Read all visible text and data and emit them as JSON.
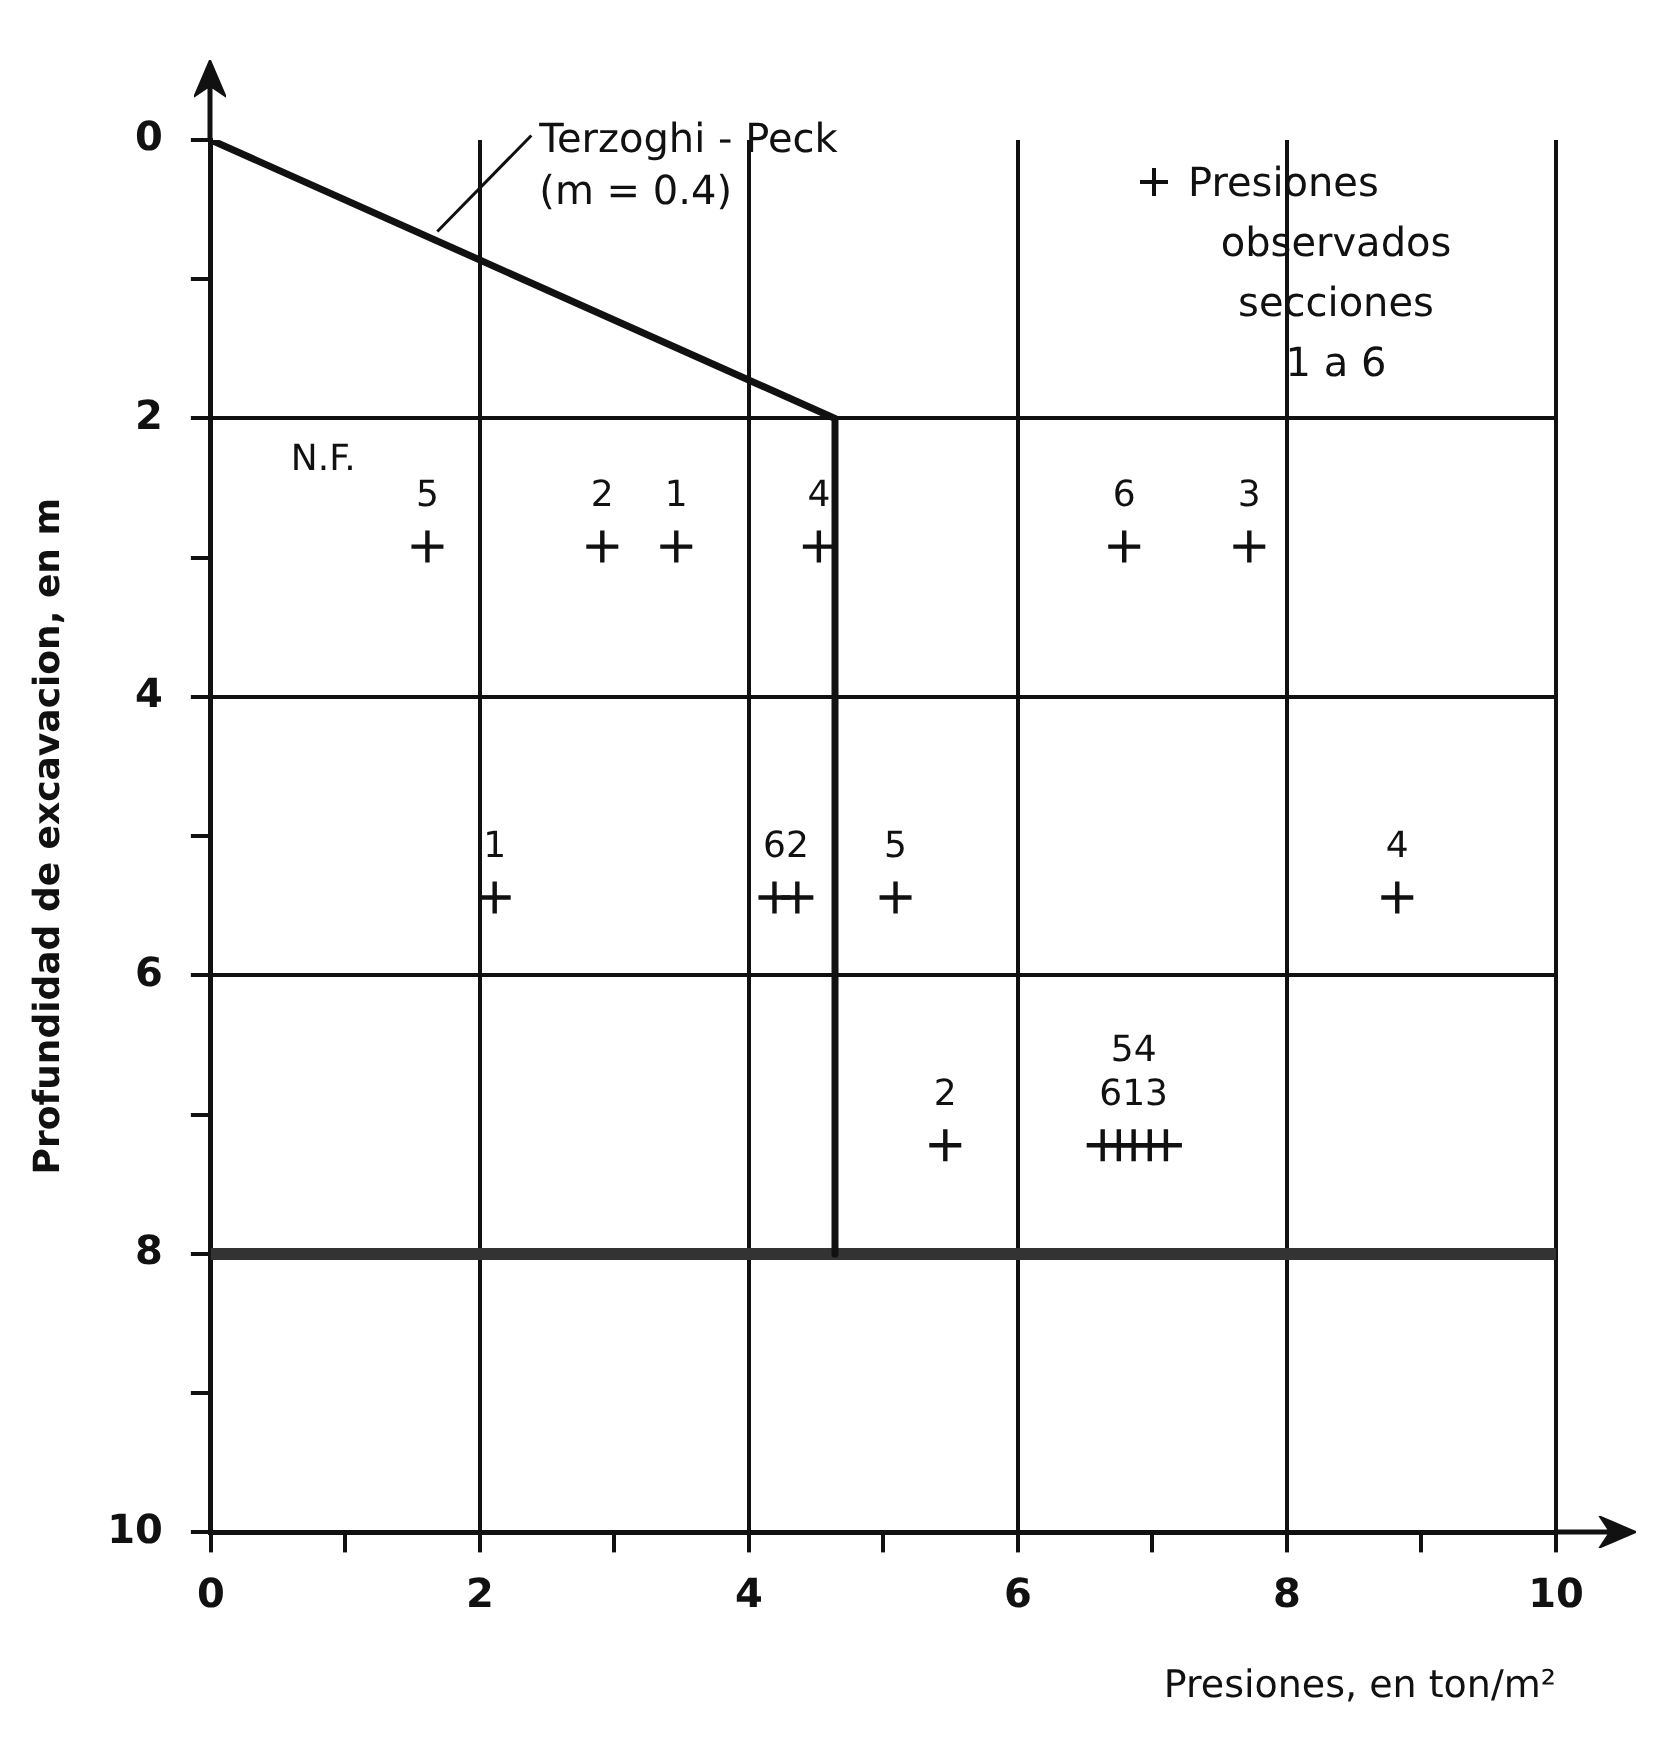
{
  "chart_data": {
    "type": "scatter",
    "xlabel": "Presiones, en ton/m²",
    "ylabel": "Profundidad de excavacion, en m",
    "xlim": [
      0,
      10
    ],
    "ylim": [
      10,
      0
    ],
    "xticks": [
      0,
      {
        "value": 1,
        "label": null
      },
      2,
      {
        "value": 3,
        "label": null
      },
      4,
      {
        "value": 5,
        "label": null
      },
      6,
      {
        "value": 7,
        "label": null
      },
      8,
      {
        "value": 9,
        "label": null
      },
      10
    ],
    "yticks": [
      0,
      {
        "value": 1,
        "label": null
      },
      2,
      {
        "value": 3,
        "label": null
      },
      4,
      {
        "value": 5,
        "label": null
      },
      6,
      {
        "value": 7,
        "label": null
      },
      8,
      {
        "value": 9,
        "label": null
      },
      10
    ],
    "grid": true,
    "legend": "top right",
    "series": [
      {
        "name": "Terzoghi - Peck (m = 0.4)",
        "type": "line",
        "color": "#111111",
        "x": [
          0,
          4.64,
          4.64
        ],
        "values": [
          0,
          2,
          8
        ]
      },
      {
        "name": "Presiones observados secciones 1 a 6",
        "type": "scatter",
        "color": "#111111",
        "marker": "cross",
        "x": [
          1.61,
          2.91,
          3.46,
          4.52,
          6.79,
          7.72,
          2.11,
          4.19,
          4.36,
          5.09,
          8.82,
          5.46,
          6.63,
          6.75,
          6.86,
          6.98,
          7.1
        ],
        "values": [
          2.92,
          2.92,
          2.92,
          2.92,
          2.92,
          2.92,
          5.44,
          5.44,
          5.44,
          5.44,
          5.44,
          7.22,
          7.22,
          7.22,
          7.22,
          7.22,
          7.22
        ]
      }
    ],
    "ref_lines": [
      {
        "axis": "y",
        "value": 8,
        "color": "#333333"
      }
    ],
    "annotations": [
      "N.F.",
      {
        "text": "5",
        "x": 1.61,
        "y": 2.92
      },
      {
        "text": "2",
        "x": 2.91,
        "y": 2.92
      },
      {
        "text": "1",
        "x": 3.46,
        "y": 2.92
      },
      {
        "text": "4",
        "x": 4.52,
        "y": 2.92
      },
      {
        "text": "6",
        "x": 6.79,
        "y": 2.92
      },
      {
        "text": "3",
        "x": 7.72,
        "y": 2.92
      },
      {
        "text": "1",
        "x": 2.11,
        "y": 5.44
      },
      {
        "text": "6",
        "x": 4.19,
        "y": 5.44
      },
      {
        "text": "2",
        "x": 4.36,
        "y": 5.44
      },
      {
        "text": "5",
        "x": 5.09,
        "y": 5.44
      },
      {
        "text": "4",
        "x": 8.82,
        "y": 5.44
      },
      {
        "text": "2",
        "x": 5.46,
        "y": 7.22
      },
      {
        "text": "613",
        "x": 6.86,
        "y": 7.22
      },
      {
        "text": "54",
        "x": 6.86,
        "y": 7.22
      }
    ]
  }
}
